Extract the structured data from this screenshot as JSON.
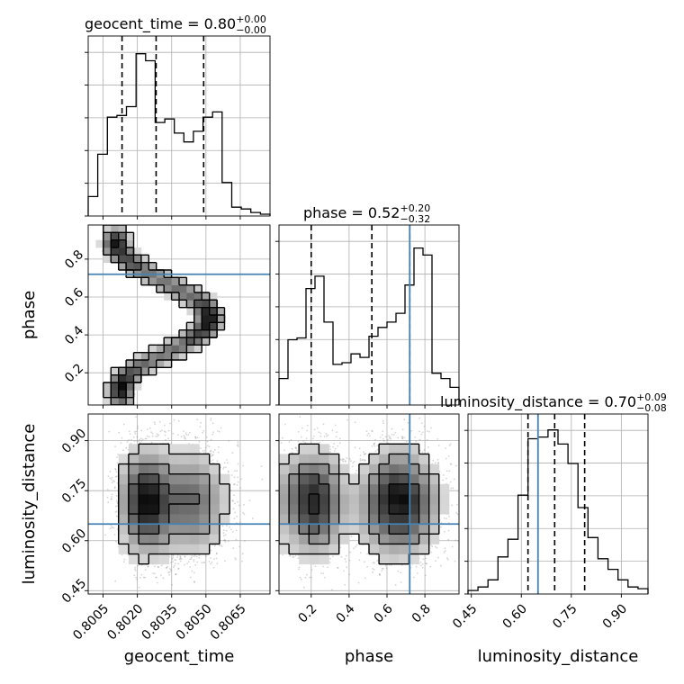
{
  "colors": {
    "hist_line": "#000000",
    "quantile_line": "#000000",
    "truth": "#4682b4",
    "grid": "#b0b0b0",
    "density": "#000000",
    "points": "#888888"
  },
  "chart_data": {
    "type": "corner",
    "parameters": [
      {
        "name": "geocent_time",
        "xlabel": "geocent_time",
        "title_prefix": "geocent_time = 0.80",
        "title_sup": "+0.00",
        "title_sub": "−0.00",
        "range": [
          0.79985,
          0.8078
        ],
        "ticks": [
          0.8005,
          0.802,
          0.8035,
          0.805,
          0.8065
        ],
        "tick_labels": [
          "0.8005",
          "0.8020",
          "0.8035",
          "0.8050",
          "0.8065"
        ],
        "quantiles": [
          0.80133,
          0.80282,
          0.8049
        ],
        "truth": null,
        "hist": [
          0.11,
          0.35,
          0.56,
          0.57,
          0.62,
          0.92,
          0.88,
          0.53,
          0.55,
          0.47,
          0.42,
          0.48,
          0.56,
          0.59,
          0.19,
          0.05,
          0.04,
          0.02,
          0.01
        ]
      },
      {
        "name": "phase",
        "xlabel": "phase",
        "ylabel": "phase",
        "title_prefix": "phase = 0.52",
        "title_sup": "+0.20",
        "title_sub": "−0.32",
        "range": [
          0.03,
          0.98
        ],
        "ticks": [
          0.2,
          0.4,
          0.6,
          0.8
        ],
        "tick_labels": [
          "0.2",
          "0.4",
          "0.6",
          "0.8"
        ],
        "quantiles": [
          0.2,
          0.52,
          0.72
        ],
        "truth": 0.72,
        "hist": [
          0.15,
          0.37,
          0.38,
          0.66,
          0.73,
          0.47,
          0.23,
          0.24,
          0.29,
          0.27,
          0.39,
          0.44,
          0.47,
          0.52,
          0.68,
          0.89,
          0.85,
          0.18,
          0.15,
          0.1
        ]
      },
      {
        "name": "luminosity_distance",
        "xlabel": "luminosity_distance",
        "ylabel": "luminosity_distance",
        "title_prefix": "luminosity_distance = 0.70",
        "title_sup": "+0.09",
        "title_sub": "−0.08",
        "range": [
          0.44,
          0.98
        ],
        "ticks": [
          0.45,
          0.6,
          0.75,
          0.9
        ],
        "tick_labels": [
          "0.45",
          "0.60",
          "0.75",
          "0.90"
        ],
        "quantiles": [
          0.62,
          0.7,
          0.79
        ],
        "truth": 0.65,
        "hist": [
          0.02,
          0.04,
          0.08,
          0.21,
          0.31,
          0.56,
          0.88,
          0.89,
          0.93,
          0.85,
          0.74,
          0.49,
          0.32,
          0.2,
          0.14,
          0.08,
          0.04,
          0.03
        ]
      }
    ],
    "grid": true
  }
}
